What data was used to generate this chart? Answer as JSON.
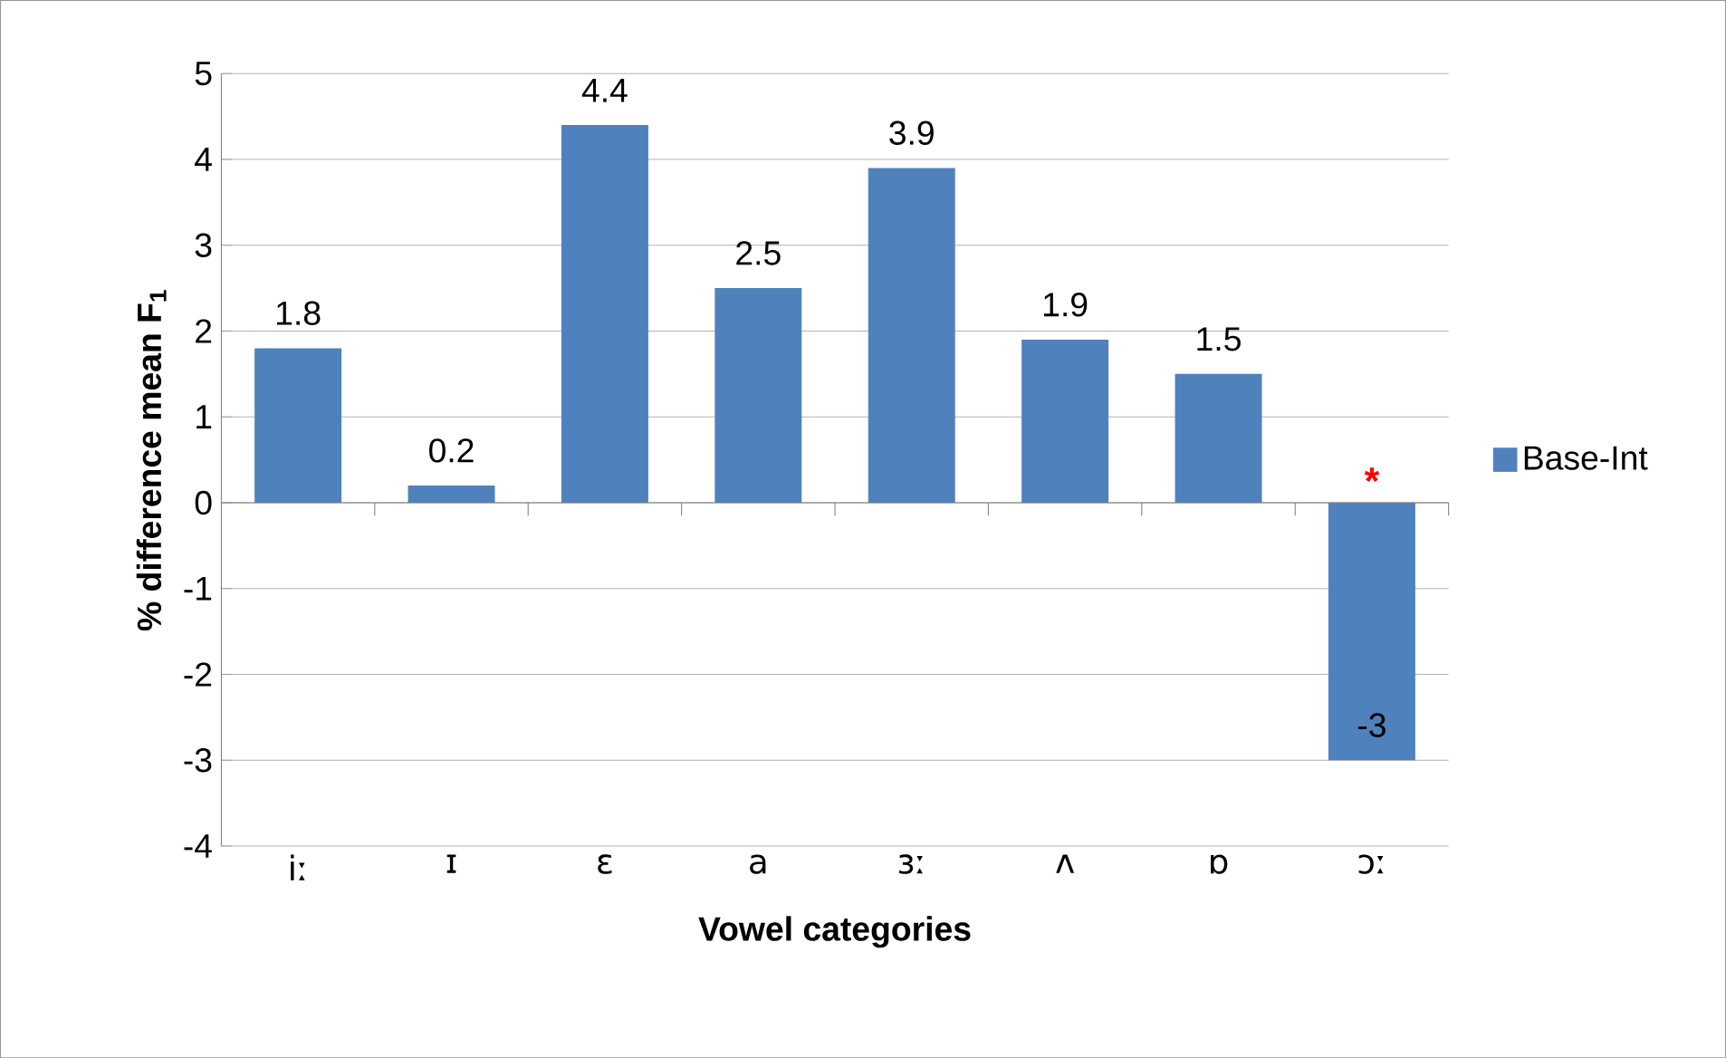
{
  "chart_data": {
    "type": "bar",
    "xlabel": "Vowel categories",
    "ylabel": "% difference mean F$_{1}$",
    "categories": [
      "iː",
      "ɪ",
      "ɛ",
      "a",
      "ɜː",
      "ʌ",
      "ɒ",
      "ɔː"
    ],
    "series": [
      {
        "name": "Base-Int",
        "color": "#4f81bd",
        "values": [
          1.8,
          0.2,
          4.4,
          2.5,
          3.9,
          1.9,
          1.5,
          -3
        ]
      }
    ],
    "ylim": [
      -4,
      5
    ],
    "yticks": [
      -4,
      -3,
      -2,
      -1,
      0,
      1,
      2,
      3,
      4,
      5
    ],
    "grid": "y",
    "legend": "right",
    "data_labels": true,
    "annotations": [
      "*"
    ]
  }
}
